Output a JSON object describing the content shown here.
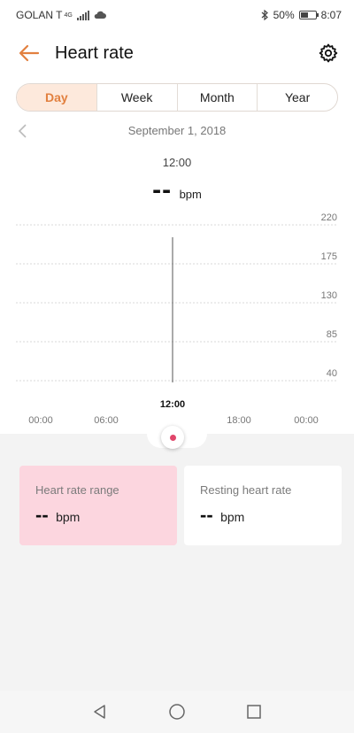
{
  "status_bar": {
    "carrier": "GOLAN T",
    "network": "4G",
    "battery": "50%",
    "battery_level": 0.5,
    "time": "8:07"
  },
  "header": {
    "title": "Heart rate",
    "back_icon": "arrow-left-icon",
    "settings_icon": "gear-icon",
    "accent_color": "#e2803f"
  },
  "tabs": [
    {
      "label": "Day",
      "active": true
    },
    {
      "label": "Week",
      "active": false
    },
    {
      "label": "Month",
      "active": false
    },
    {
      "label": "Year",
      "active": false
    }
  ],
  "date_nav": {
    "date": "September 1, 2018"
  },
  "selected": {
    "time": "12:00",
    "value": "--",
    "unit": "bpm"
  },
  "chart_data": {
    "type": "line",
    "y_ticks": [
      220,
      175,
      130,
      85,
      40
    ],
    "ylim": [
      40,
      220
    ],
    "x_ticks": [
      "00:00",
      "06:00",
      "12:00",
      "18:00",
      "00:00"
    ],
    "cursor_label": "12:00",
    "series": [],
    "grid": true
  },
  "cards": {
    "range": {
      "title": "Heart rate range",
      "value": "--",
      "unit": "bpm",
      "color": "#fcd6df"
    },
    "resting": {
      "title": "Resting heart rate",
      "value": "--",
      "unit": "bpm"
    }
  },
  "nav": {
    "back_icon": "triangle-back-icon",
    "home_icon": "circle-home-icon",
    "recents_icon": "square-recents-icon"
  }
}
